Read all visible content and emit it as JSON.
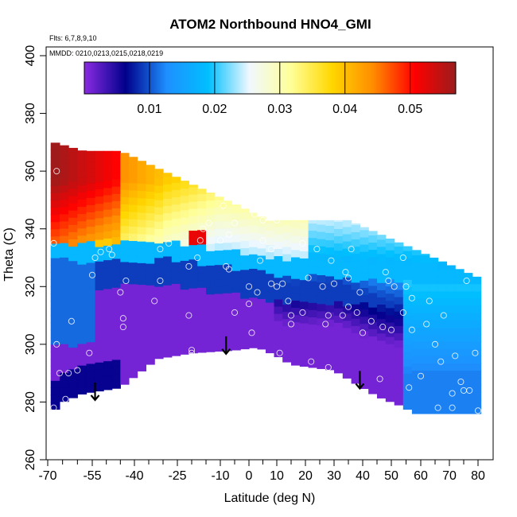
{
  "chart_data": {
    "type": "heatmap",
    "title": "ATOM2 Northbound HNO4_GMI",
    "flights_note": "Flts: 6,7,8,9,10",
    "dates_note": "MMDD: 0210,0213,0215,0218,0219",
    "xlabel": "Latitude (deg N)",
    "ylabel": "Theta (C)",
    "xlim": [
      -70,
      82
    ],
    "ylim": [
      260,
      405
    ],
    "x_ticks": [
      -70,
      -55,
      -40,
      -25,
      -10,
      0,
      10,
      20,
      30,
      40,
      50,
      60,
      70,
      80
    ],
    "x_tick_labels": [
      "-70",
      "-55",
      "-40",
      "-25",
      "-10",
      "0",
      "10",
      "20",
      "30",
      "40",
      "50",
      "60",
      "70",
      "80"
    ],
    "x_minor_ticks": [
      -65,
      -60,
      -50,
      -45,
      -35,
      -30,
      -20,
      -15,
      -5,
      5,
      15,
      25,
      35,
      45,
      55,
      65,
      75
    ],
    "y_ticks": [
      260,
      280,
      300,
      320,
      340,
      360,
      380,
      400
    ],
    "y_tick_labels": [
      "260",
      "280",
      "300",
      "320",
      "340",
      "360",
      "380",
      "400"
    ],
    "colorbar": {
      "range": [
        0,
        0.057
      ],
      "ticks": [
        0.01,
        0.02,
        0.03,
        0.04,
        0.05
      ],
      "tick_labels": [
        "0.01",
        "0.02",
        "0.03",
        "0.04",
        "0.05"
      ],
      "colors": [
        "#8a2be2",
        "#00008b",
        "#1e90ff",
        "#00bfff",
        "#f0f8ff",
        "#ffff99",
        "#ffd700",
        "#ff8c00",
        "#ff0000",
        "#9b1c1c"
      ]
    },
    "arrows": [
      {
        "lat": -54,
        "theta": 284
      },
      {
        "lat": -8,
        "theta": 300
      },
      {
        "lat": 39,
        "theta": 288
      }
    ],
    "surface_outline": [
      [
        -69,
        276
      ],
      [
        -65,
        280
      ],
      [
        -58,
        283
      ],
      [
        -45,
        285
      ],
      [
        -32,
        295
      ],
      [
        -20,
        297
      ],
      [
        -5,
        298
      ],
      [
        3,
        299
      ],
      [
        10,
        296
      ],
      [
        15,
        293
      ],
      [
        30,
        291
      ],
      [
        45,
        282
      ],
      [
        55,
        278
      ],
      [
        57,
        276
      ],
      [
        81,
        276
      ]
    ],
    "profile_points": [
      [
        -67,
        360
      ],
      [
        -68,
        335
      ],
      [
        -67,
        300
      ],
      [
        -66,
        290
      ],
      [
        -68,
        278
      ],
      [
        -64,
        281
      ],
      [
        -63,
        290
      ],
      [
        -60,
        291
      ],
      [
        -62,
        308
      ],
      [
        -56,
        297
      ],
      [
        -55,
        324
      ],
      [
        -54,
        330
      ],
      [
        -52,
        332
      ],
      [
        -49,
        333
      ],
      [
        -48,
        331
      ],
      [
        -45,
        318
      ],
      [
        -44,
        309
      ],
      [
        -44,
        306
      ],
      [
        -43,
        322
      ],
      [
        -33,
        315
      ],
      [
        -31,
        322
      ],
      [
        -31,
        333
      ],
      [
        -28,
        335
      ],
      [
        -21,
        327
      ],
      [
        -21,
        310
      ],
      [
        -20,
        298
      ],
      [
        -20,
        297
      ],
      [
        -18,
        330
      ],
      [
        -17,
        336
      ],
      [
        -16,
        340
      ],
      [
        -14,
        342
      ],
      [
        -9,
        348
      ],
      [
        -10,
        336
      ],
      [
        -8,
        327
      ],
      [
        -7,
        326
      ],
      [
        -7,
        338
      ],
      [
        -5,
        342
      ],
      [
        -5,
        311
      ],
      [
        0,
        314
      ],
      [
        0,
        320
      ],
      [
        1,
        304
      ],
      [
        2,
        345
      ],
      [
        3,
        318
      ],
      [
        4,
        329
      ],
      [
        5,
        343
      ],
      [
        5,
        336
      ],
      [
        8,
        333
      ],
      [
        8,
        321
      ],
      [
        10,
        320
      ],
      [
        10,
        343
      ],
      [
        11,
        297
      ],
      [
        12,
        321
      ],
      [
        14,
        315
      ],
      [
        15,
        307
      ],
      [
        15,
        310
      ],
      [
        19,
        335
      ],
      [
        19,
        311
      ],
      [
        21,
        323
      ],
      [
        22,
        294
      ],
      [
        24,
        333
      ],
      [
        26,
        320
      ],
      [
        27,
        307
      ],
      [
        28,
        310
      ],
      [
        28,
        292
      ],
      [
        29,
        329
      ],
      [
        30,
        321
      ],
      [
        32,
        347
      ],
      [
        33,
        310
      ],
      [
        34,
        325
      ],
      [
        35,
        323
      ],
      [
        35,
        313
      ],
      [
        36,
        333
      ],
      [
        38,
        311
      ],
      [
        39,
        318
      ],
      [
        40,
        304
      ],
      [
        43,
        308
      ],
      [
        46,
        288
      ],
      [
        47,
        306
      ],
      [
        48,
        325
      ],
      [
        49,
        322
      ],
      [
        50,
        305
      ],
      [
        51,
        320
      ],
      [
        54,
        330
      ],
      [
        54,
        311
      ],
      [
        55,
        320
      ],
      [
        56,
        285
      ],
      [
        57,
        305
      ],
      [
        57,
        316
      ],
      [
        60,
        289
      ],
      [
        62,
        307
      ],
      [
        63,
        315
      ],
      [
        65,
        300
      ],
      [
        66,
        278
      ],
      [
        67,
        294
      ],
      [
        68,
        310
      ],
      [
        71,
        283
      ],
      [
        71,
        278
      ],
      [
        72,
        296
      ],
      [
        74,
        287
      ],
      [
        75,
        284
      ],
      [
        76,
        322
      ],
      [
        77,
        284
      ],
      [
        79,
        297
      ],
      [
        80,
        277
      ]
    ]
  }
}
